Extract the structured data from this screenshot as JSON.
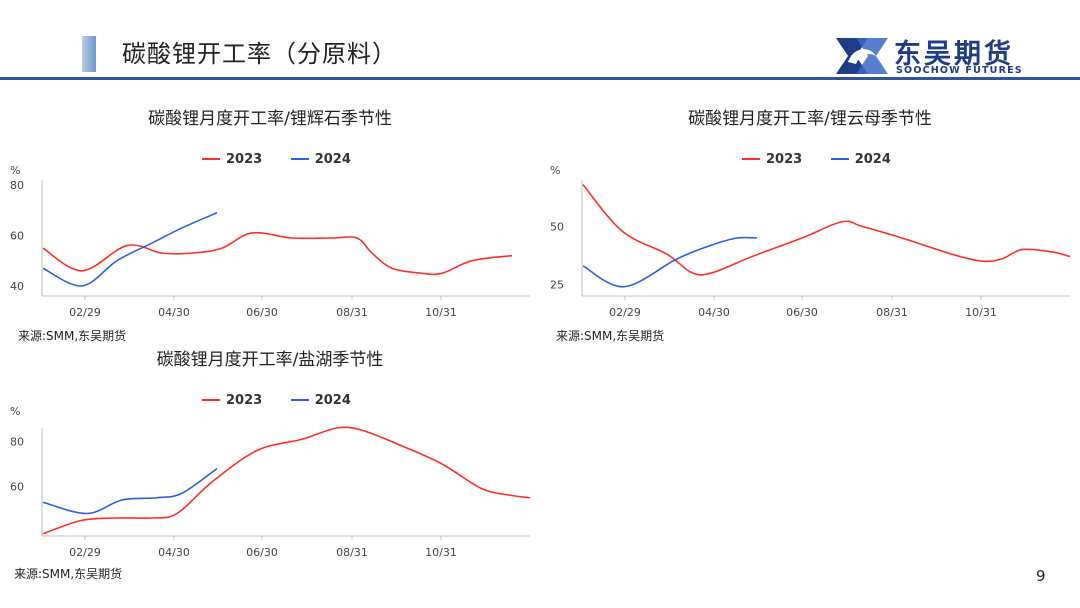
{
  "page": {
    "title": "碳酸锂开工率（分原料）",
    "page_number": "9"
  },
  "logo": {
    "cn": "东吴期货",
    "en": "SOOCHOW FUTURES",
    "brand_color": "#1f3c88"
  },
  "colors": {
    "series_2023": "#ff2d2d",
    "series_2024": "#2f5fe0"
  },
  "chart_data": [
    {
      "type": "line",
      "title": "碳酸锂月度开工率/锂辉石季节性",
      "unit": "%",
      "x_ticks": [
        "02/29",
        "04/30",
        "06/30",
        "08/31",
        "10/31"
      ],
      "y_ticks": [
        40,
        60,
        80
      ],
      "ylim": [
        36,
        82
      ],
      "legend_position": "top-center",
      "source": "来源:SMM,东吴期货",
      "series": [
        {
          "name": "2023",
          "points": [
            [
              1,
              55
            ],
            [
              40,
              46
            ],
            [
              85,
              56
            ],
            [
              120,
              53
            ],
            [
              150,
              53
            ],
            [
              180,
              55
            ],
            [
              210,
              61
            ],
            [
              250,
              59
            ],
            [
              290,
              59
            ],
            [
              315,
              59
            ],
            [
              330,
              53
            ],
            [
              350,
              47
            ],
            [
              380,
              45
            ],
            [
              400,
              45
            ],
            [
              430,
              50
            ],
            [
              470,
              52
            ]
          ]
        },
        {
          "name": "2024",
          "points": [
            [
              1,
              47
            ],
            [
              40,
              40
            ],
            [
              75,
              50
            ],
            [
              110,
              57
            ],
            [
              140,
              63
            ],
            [
              175,
              69
            ]
          ]
        }
      ]
    },
    {
      "type": "line",
      "title": "碳酸锂月度开工率/锂云母季节性",
      "unit": "%",
      "x_ticks": [
        "02/29",
        "04/30",
        "06/30",
        "08/31",
        "10/31"
      ],
      "y_ticks": [
        25,
        50
      ],
      "ylim": [
        20,
        70
      ],
      "legend_position": "top-center",
      "source": "来源:SMM,东吴期货",
      "series": [
        {
          "name": "2023",
          "points": [
            [
              1,
              68
            ],
            [
              40,
              48
            ],
            [
              85,
              38
            ],
            [
              110,
              30
            ],
            [
              130,
              30
            ],
            [
              170,
              37
            ],
            [
              220,
              45
            ],
            [
              260,
              52
            ],
            [
              280,
              50
            ],
            [
              320,
              45
            ],
            [
              370,
              38
            ],
            [
              400,
              35
            ],
            [
              420,
              36
            ],
            [
              440,
              40
            ],
            [
              470,
              39
            ],
            [
              488,
              37
            ]
          ]
        },
        {
          "name": "2024",
          "points": [
            [
              1,
              33
            ],
            [
              42,
              24
            ],
            [
              95,
              36
            ],
            [
              130,
              42
            ],
            [
              155,
              45
            ],
            [
              175,
              45
            ]
          ]
        }
      ]
    },
    {
      "type": "line",
      "title": "碳酸锂月度开工率/盐湖季节性",
      "unit": "%",
      "x_ticks": [
        "02/29",
        "04/30",
        "06/30",
        "08/31",
        "10/31"
      ],
      "y_ticks": [
        60,
        80
      ],
      "ylim": [
        38,
        86
      ],
      "legend_position": "top-center",
      "source": "来源:SMM,东吴期货",
      "series": [
        {
          "name": "2023",
          "points": [
            [
              1,
              39
            ],
            [
              40,
              45
            ],
            [
              75,
              46
            ],
            [
              110,
              46
            ],
            [
              135,
              48
            ],
            [
              170,
              62
            ],
            [
              215,
              76
            ],
            [
              260,
              81
            ],
            [
              295,
              86
            ],
            [
              320,
              85
            ],
            [
              360,
              78
            ],
            [
              400,
              70
            ],
            [
              440,
              59
            ],
            [
              470,
              56
            ],
            [
              488,
              55
            ]
          ]
        },
        {
          "name": "2024",
          "points": [
            [
              1,
              53
            ],
            [
              45,
              48
            ],
            [
              80,
              54
            ],
            [
              115,
              55
            ],
            [
              140,
              57
            ],
            [
              175,
              68
            ]
          ]
        }
      ]
    }
  ]
}
